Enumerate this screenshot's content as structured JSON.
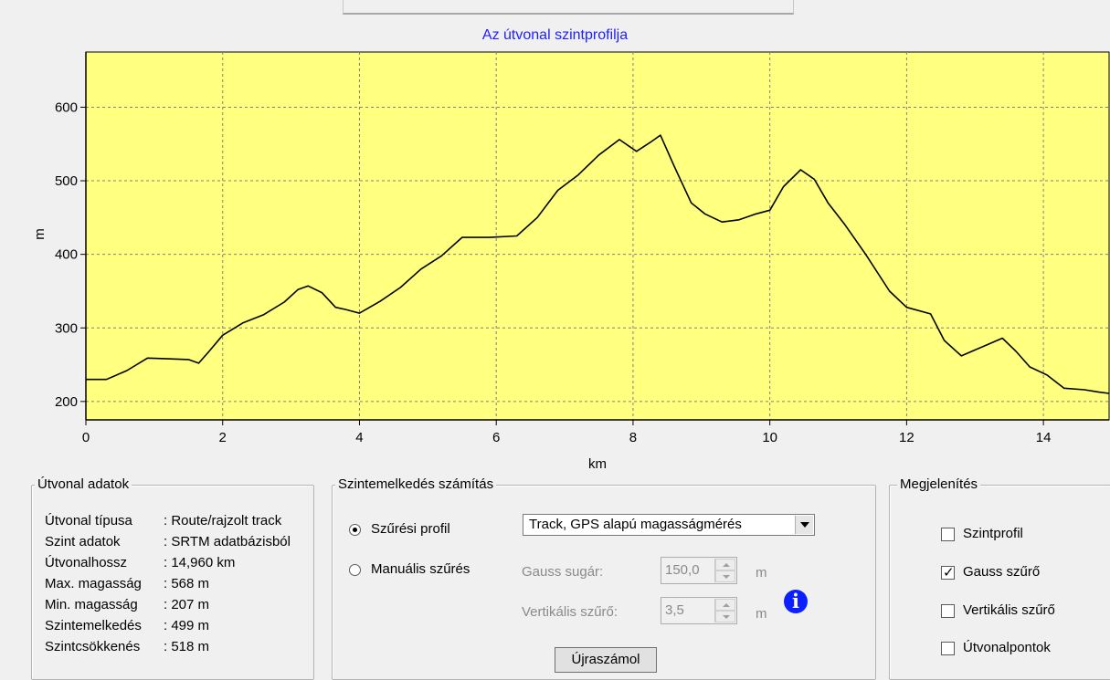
{
  "chart_data": {
    "type": "line",
    "title": "Az útvonal szintprofilja",
    "xlabel": "km",
    "ylabel": "m",
    "xlim": [
      0,
      14.96
    ],
    "ylim": [
      175,
      675
    ],
    "xticks": [
      0,
      2,
      4,
      6,
      8,
      10,
      12,
      14
    ],
    "yticks": [
      200,
      300,
      400,
      500,
      600
    ],
    "grid": true,
    "series": [
      {
        "color": "#000000",
        "x": [
          0,
          0.3,
          0.6,
          0.9,
          1.2,
          1.5,
          1.65,
          1.8,
          2.0,
          2.3,
          2.6,
          2.9,
          3.1,
          3.25,
          3.45,
          3.65,
          3.8,
          4.0,
          4.3,
          4.6,
          4.9,
          5.2,
          5.5,
          5.9,
          6.3,
          6.6,
          6.9,
          7.2,
          7.5,
          7.8,
          8.05,
          8.25,
          8.4,
          8.6,
          8.85,
          9.05,
          9.3,
          9.55,
          9.8,
          10.0,
          10.2,
          10.45,
          10.65,
          10.85,
          11.1,
          11.4,
          11.75,
          12.0,
          12.35,
          12.55,
          12.8,
          13.0,
          13.2,
          13.4,
          13.6,
          13.8,
          14.05,
          14.3,
          14.6,
          14.8,
          14.96
        ],
        "values": [
          230,
          230,
          242,
          259,
          258,
          257,
          252,
          268,
          290,
          307,
          318,
          335,
          352,
          357,
          348,
          328,
          325,
          320,
          336,
          355,
          380,
          398,
          423,
          423,
          425,
          450,
          487,
          508,
          535,
          556,
          540,
          552,
          562,
          520,
          470,
          455,
          444,
          447,
          455,
          460,
          492,
          515,
          502,
          470,
          440,
          400,
          350,
          328,
          319,
          283,
          262,
          270,
          278,
          286,
          268,
          247,
          236,
          218,
          216,
          213,
          211
        ]
      }
    ]
  },
  "route_data": {
    "legend": "Útvonal adatok",
    "rows": [
      {
        "label": "Útvonal típusa",
        "value": ": Route/rajzolt track"
      },
      {
        "label": "Szint adatok",
        "value": ": SRTM adatbázisból"
      },
      {
        "label": "Útvonalhossz",
        "value": ": 14,960 km"
      },
      {
        "label": "Max. magasság",
        "value": ": 568 m"
      },
      {
        "label": "Min. magasság",
        "value": ": 207 m"
      },
      {
        "label": "Szintemelkedés",
        "value": ": 499 m"
      },
      {
        "label": "Szintcsökkenés",
        "value": ": 518 m"
      }
    ]
  },
  "elevation_calc": {
    "legend": "Szintemelkedés számítás",
    "radio_filter_profile": "Szűrési profil",
    "radio_manual": "Manuális szűrés",
    "profile_select": "Track, GPS alapú magasságmérés",
    "gauss_label": "Gauss sugár:",
    "gauss_value": "150,0",
    "gauss_unit": "m",
    "vertical_label": "Vertikális szűrő:",
    "vertical_value": "3,5",
    "vertical_unit": "m",
    "recalc_button": "Újraszámol",
    "info_icon": "info-icon"
  },
  "display": {
    "legend": "Megjelenítés",
    "options": [
      {
        "label": "Szintprofil",
        "checked": false
      },
      {
        "label": "Gauss szűrő",
        "checked": true
      },
      {
        "label": "Vertikális szűrő",
        "checked": false
      },
      {
        "label": "Útvonalpontok",
        "checked": false
      }
    ]
  },
  "colors": {
    "plot_background": "#ffff80",
    "title": "#2020ff",
    "info_icon": "#0b1fff"
  }
}
